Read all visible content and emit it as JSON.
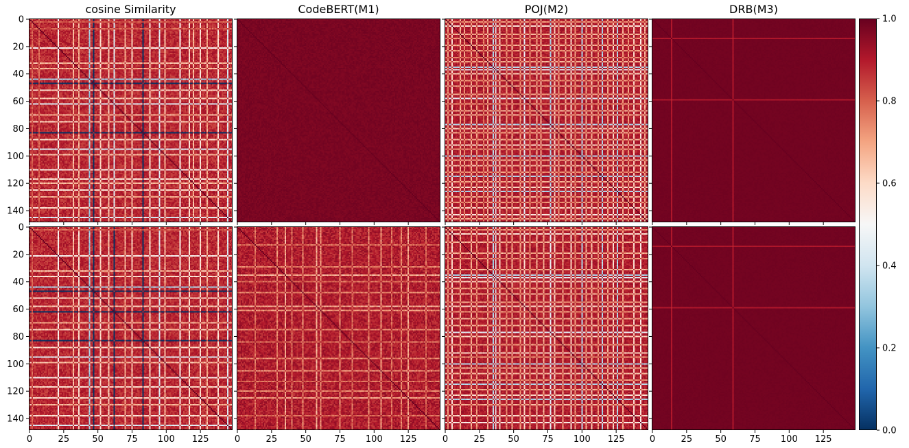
{
  "colorbar": {
    "colormap": "RdBu_r",
    "range": [
      0.0,
      1.0
    ],
    "ticks": [
      0.0,
      0.2,
      0.4,
      0.6,
      0.8,
      1.0
    ],
    "tick_labels": [
      "0.0",
      "0.2",
      "0.4",
      "0.6",
      "0.8",
      "1.0"
    ],
    "stops": [
      "#053061",
      "#2166ac",
      "#4393c3",
      "#92c5de",
      "#d1e5f0",
      "#f7f7f7",
      "#fddbc7",
      "#f4a582",
      "#d6604d",
      "#b2182b",
      "#67001f"
    ]
  },
  "chart_data": {
    "type": "heatmap",
    "layout": "2 rows x 4 columns of similarity matrices",
    "matrix_size": 149,
    "x_ticks": [
      0,
      25,
      50,
      75,
      100,
      125
    ],
    "x_tick_labels": [
      "0",
      "25",
      "50",
      "75",
      "100",
      "125"
    ],
    "y_ticks": [
      0,
      20,
      40,
      60,
      80,
      100,
      120,
      140
    ],
    "y_tick_labels": [
      "0",
      "20",
      "40",
      "60",
      "80",
      "100",
      "120",
      "140"
    ],
    "value_range": [
      0.0,
      1.0
    ],
    "panels": [
      {
        "title": "cosine Similarity",
        "row": 0,
        "col": 0,
        "seed": 11,
        "base": 0.88,
        "row_offsets": {
          "2": -0.08,
          "7": -0.08,
          "21": -0.35,
          "32": -0.22,
          "36": -0.2,
          "44": -0.55,
          "47": -0.95,
          "52": -0.28,
          "58": -0.25,
          "62": -0.45,
          "70": -0.2,
          "75": -0.25,
          "83": -1.0,
          "88": -0.28,
          "95": -0.45,
          "99": -0.22,
          "110": -0.35,
          "117": -0.3,
          "120": -0.22,
          "125": -0.3,
          "130": -0.2,
          "138": -0.3,
          "145": -0.45
        },
        "line_color": 0.86,
        "noise": 0.05
      },
      {
        "title": "CodeBERT(M1)",
        "row": 0,
        "col": 1,
        "seed": 23,
        "base": 0.975,
        "row_offsets": {},
        "line_color": 0.9,
        "noise": 0.012
      },
      {
        "title": "POJ(M2)",
        "row": 0,
        "col": 2,
        "seed": 37,
        "base": 0.9,
        "row_offsets": {
          "2": -0.18,
          "5": -0.32,
          "11": -0.22,
          "14": -0.18,
          "19": -0.22,
          "23": -0.18,
          "28": -0.15,
          "31": -0.22,
          "35": -0.55,
          "37": -0.45,
          "40": -0.28,
          "45": -0.18,
          "49": -0.22,
          "55": -0.2,
          "58": -0.45,
          "62": -0.18,
          "67": -0.22,
          "70": -0.22,
          "77": -0.55,
          "80": -0.28,
          "83": -0.2,
          "88": -0.22,
          "92": -0.3,
          "95": -0.18,
          "100": -0.55,
          "103": -0.22,
          "107": -0.25,
          "112": -0.18,
          "115": -0.55,
          "119": -0.22,
          "123": -0.3,
          "126": -0.55,
          "130": -0.22,
          "134": -0.18,
          "138": -0.3,
          "143": -0.35,
          "146": -0.22
        },
        "line_color": 0.86,
        "noise": 0.04
      },
      {
        "title": "DRB(M3)",
        "row": 0,
        "col": 3,
        "seed": 41,
        "base": 0.985,
        "row_offsets": {
          "14": -0.08,
          "59": -0.08
        },
        "line_color": 0.88,
        "noise": 0.004
      },
      {
        "title": "",
        "row": 1,
        "col": 0,
        "seed": 53,
        "base": 0.88,
        "row_offsets": {
          "2": -0.08,
          "21": -0.35,
          "32": -0.22,
          "36": -0.3,
          "44": -0.55,
          "47": -0.95,
          "52": -0.28,
          "58": -0.25,
          "62": -0.95,
          "70": -0.2,
          "75": -0.25,
          "83": -0.95,
          "88": -0.28,
          "95": -0.45,
          "99": -0.22,
          "110": -0.35,
          "117": -0.3,
          "125": -0.3,
          "130": -0.2,
          "138": -0.3,
          "145": -0.45
        },
        "line_color": 0.86,
        "noise": 0.05
      },
      {
        "title": "",
        "row": 1,
        "col": 1,
        "seed": 67,
        "base": 0.9,
        "row_offsets": {
          "13": -0.12,
          "29": -0.15,
          "35": -0.22,
          "40": -0.12,
          "48": -0.15,
          "58": -0.22,
          "61": -0.18,
          "75": -0.15,
          "84": -0.12,
          "96": -0.15,
          "105": -0.18,
          "113": -0.12,
          "120": -0.15,
          "125": -0.2,
          "138": -0.12
        },
        "line_color": 0.9,
        "noise": 0.05
      },
      {
        "title": "",
        "row": 1,
        "col": 2,
        "seed": 79,
        "base": 0.9,
        "row_offsets": {
          "2": -0.18,
          "5": -0.32,
          "11": -0.22,
          "19": -0.22,
          "23": -0.18,
          "31": -0.22,
          "35": -0.55,
          "37": -0.45,
          "40": -0.28,
          "45": -0.18,
          "49": -0.22,
          "55": -0.2,
          "58": -0.3,
          "62": -0.18,
          "67": -0.22,
          "72": -0.22,
          "77": -0.45,
          "80": -0.28,
          "86": -0.2,
          "92": -0.3,
          "95": -0.18,
          "100": -0.55,
          "103": -0.22,
          "107": -0.25,
          "112": -0.18,
          "115": -0.55,
          "119": -0.22,
          "123": -0.3,
          "126": -0.55,
          "130": -0.22,
          "138": -0.3,
          "143": -0.35
        },
        "line_color": 0.86,
        "noise": 0.04
      },
      {
        "title": "",
        "row": 1,
        "col": 3,
        "seed": 89,
        "base": 0.985,
        "row_offsets": {
          "14": -0.08,
          "59": -0.08
        },
        "line_color": 0.88,
        "noise": 0.004
      }
    ]
  }
}
